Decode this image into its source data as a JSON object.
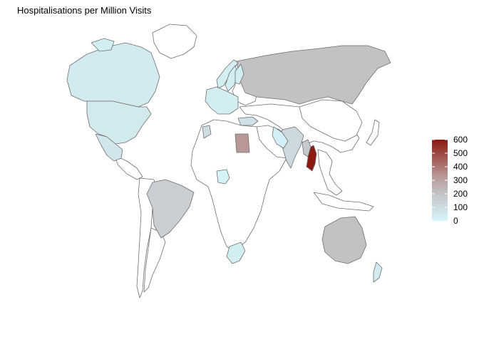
{
  "title": "Hospitalisations per Million Visits",
  "legend": {
    "min": 0,
    "max": 600,
    "ticks": [
      "0",
      "100",
      "200",
      "300",
      "400",
      "500",
      "600"
    ],
    "color_low": "#d6f5fb",
    "color_mid": "#c4c4c8",
    "color_high": "#8b1a10"
  },
  "chart_data": {
    "type": "choropleth",
    "title": "Hospitalisations per Million Visits",
    "legend_position": "right",
    "scale_range": [
      0,
      600
    ],
    "regions": [
      {
        "name": "Canada",
        "value": 40
      },
      {
        "name": "United States",
        "value": 50
      },
      {
        "name": "Mexico",
        "value": 60
      },
      {
        "name": "Brazil",
        "value": 160
      },
      {
        "name": "Russia",
        "value": 210
      },
      {
        "name": "Egypt",
        "value": 330
      },
      {
        "name": "Thailand",
        "value": 600
      },
      {
        "name": "Myanmar",
        "value": 180
      },
      {
        "name": "Australia",
        "value": 210
      },
      {
        "name": "India",
        "value": 110
      },
      {
        "name": "South Africa",
        "value": 30
      },
      {
        "name": "Nigeria",
        "value": 10
      },
      {
        "name": "Saudi Arabia",
        "value": 20
      },
      {
        "name": "Morocco",
        "value": 100
      },
      {
        "name": "Turkey",
        "value": 80
      },
      {
        "name": "Norway",
        "value": 30
      },
      {
        "name": "Sweden",
        "value": 30
      },
      {
        "name": "Finland",
        "value": 30
      },
      {
        "name": "Western Europe",
        "value": 30
      },
      {
        "name": "Greenland",
        "value": 30
      },
      {
        "name": "New Zealand",
        "value": 40
      }
    ]
  }
}
